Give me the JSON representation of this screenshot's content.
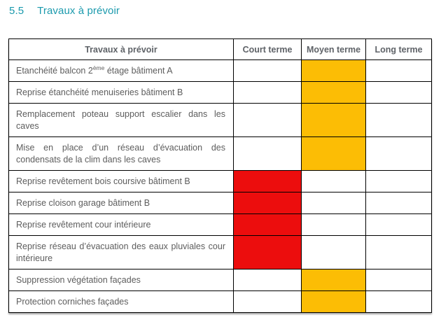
{
  "title": {
    "number": "5.5",
    "text": "Travaux à prévoir"
  },
  "colors": {
    "accent": "#1b9aad",
    "red": "#ec0d0d",
    "yellow": "#fcbd05"
  },
  "table": {
    "headers": [
      "Travaux à prévoir",
      "Court terme",
      "Moyen terme",
      "Long terme"
    ],
    "rows": [
      {
        "label": [
          {
            "t": "Etanchéité balcon 2"
          },
          {
            "t": "ème",
            "sup": true
          },
          {
            "t": " étage bâtiment A"
          }
        ],
        "court": "",
        "moyen": "yellow",
        "long": ""
      },
      {
        "label": [
          {
            "t": "Reprise étanchéité menuiseries bâtiment B"
          }
        ],
        "court": "",
        "moyen": "yellow",
        "long": ""
      },
      {
        "label": [
          {
            "t": "Remplacement poteau support escalier dans les caves"
          }
        ],
        "court": "",
        "moyen": "yellow",
        "long": ""
      },
      {
        "label": [
          {
            "t": "Mise en place d’un réseau d’évacuation des condensats de la clim dans les caves"
          }
        ],
        "court": "",
        "moyen": "yellow",
        "long": ""
      },
      {
        "label": [
          {
            "t": "Reprise revêtement bois coursive bâtiment B"
          }
        ],
        "court": "red",
        "moyen": "",
        "long": ""
      },
      {
        "label": [
          {
            "t": "Reprise cloison garage bâtiment B"
          }
        ],
        "court": "red",
        "moyen": "",
        "long": ""
      },
      {
        "label": [
          {
            "t": "Reprise revêtement cour intérieure"
          }
        ],
        "court": "red",
        "moyen": "",
        "long": ""
      },
      {
        "label": [
          {
            "t": "Reprise réseau d’évacuation des eaux pluviales cour intérieure"
          }
        ],
        "court": "red",
        "moyen": "",
        "long": ""
      },
      {
        "label": [
          {
            "t": "Suppression végétation façades"
          }
        ],
        "court": "",
        "moyen": "yellow",
        "long": ""
      },
      {
        "label": [
          {
            "t": "Protection corniches façades"
          }
        ],
        "court": "",
        "moyen": "yellow",
        "long": ""
      }
    ]
  }
}
